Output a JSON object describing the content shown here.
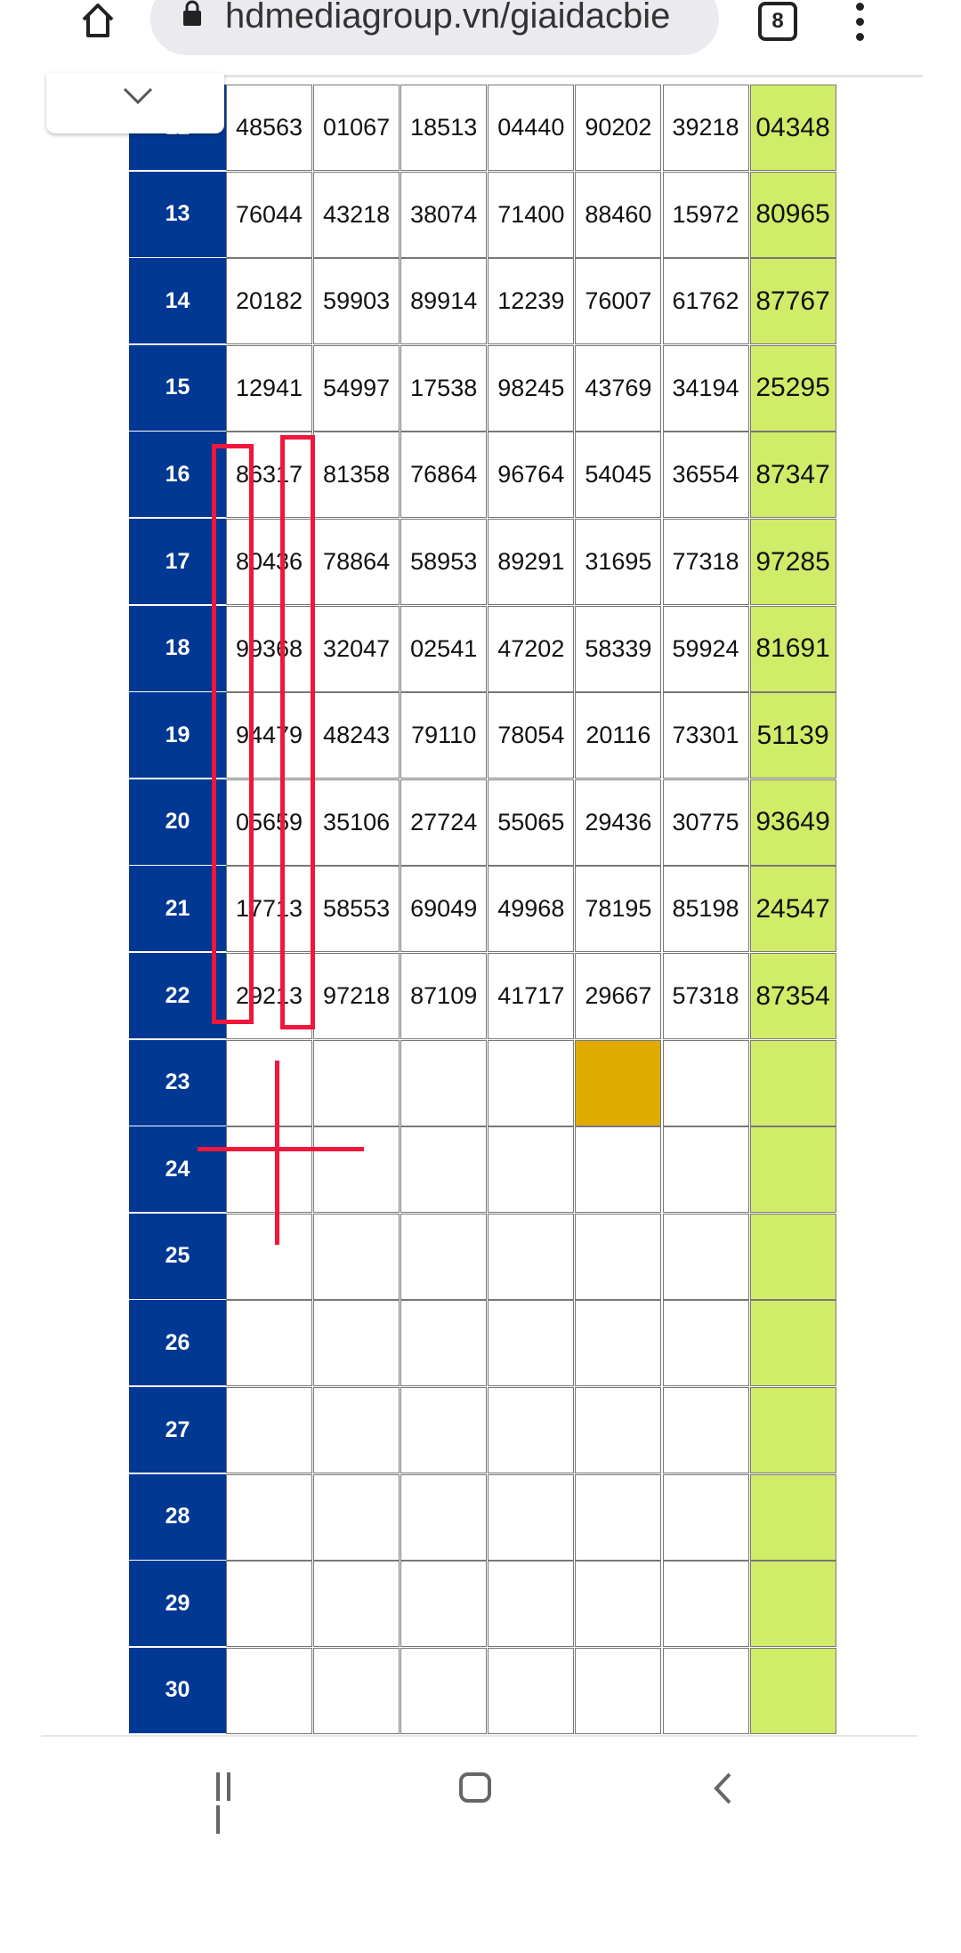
{
  "browser": {
    "url": "hdmediagroup.vn/giaidacbie",
    "tab_count": "8",
    "icons": [
      "home-icon",
      "lock-icon",
      "tab-switcher-icon",
      "more-menu-icon"
    ]
  },
  "colors": {
    "row_label_bg": "#003893",
    "last_column_bg": "#d0ec68",
    "highlight_cell": "#e0ab00",
    "annotation": "#f0163c"
  },
  "table": {
    "rows": [
      {
        "label": "12",
        "values": [
          "48563",
          "01067",
          "18513",
          "04440",
          "90202",
          "39218",
          "04348"
        ]
      },
      {
        "label": "13",
        "values": [
          "76044",
          "43218",
          "38074",
          "71400",
          "88460",
          "15972",
          "80965"
        ]
      },
      {
        "label": "14",
        "values": [
          "20182",
          "59903",
          "89914",
          "12239",
          "76007",
          "61762",
          "87767"
        ]
      },
      {
        "label": "15",
        "values": [
          "12941",
          "54997",
          "17538",
          "98245",
          "43769",
          "34194",
          "25295"
        ]
      },
      {
        "label": "16",
        "values": [
          "86317",
          "81358",
          "76864",
          "96764",
          "54045",
          "36554",
          "87347"
        ]
      },
      {
        "label": "17",
        "values": [
          "80436",
          "78864",
          "58953",
          "89291",
          "31695",
          "77318",
          "97285"
        ]
      },
      {
        "label": "18",
        "values": [
          "99368",
          "32047",
          "02541",
          "47202",
          "58339",
          "59924",
          "81691"
        ]
      },
      {
        "label": "19",
        "values": [
          "94479",
          "48243",
          "79110",
          "78054",
          "20116",
          "73301",
          "51139"
        ]
      },
      {
        "label": "20",
        "values": [
          "05659",
          "35106",
          "27724",
          "55065",
          "29436",
          "30775",
          "93649"
        ]
      },
      {
        "label": "21",
        "values": [
          "17713",
          "58553",
          "69049",
          "49968",
          "78195",
          "85198",
          "24547"
        ]
      },
      {
        "label": "22",
        "values": [
          "29213",
          "97218",
          "87109",
          "41717",
          "29667",
          "57318",
          "87354"
        ]
      },
      {
        "label": "23",
        "values": [
          "",
          "",
          "",
          "",
          "",
          "",
          ""
        ],
        "highlight_col": 4
      },
      {
        "label": "24",
        "values": [
          "",
          "",
          "",
          "",
          "",
          "",
          ""
        ]
      },
      {
        "label": "25",
        "values": [
          "",
          "",
          "",
          "",
          "",
          "",
          ""
        ]
      },
      {
        "label": "26",
        "values": [
          "",
          "",
          "",
          "",
          "",
          "",
          ""
        ]
      },
      {
        "label": "27",
        "values": [
          "",
          "",
          "",
          "",
          "",
          "",
          ""
        ]
      },
      {
        "label": "28",
        "values": [
          "",
          "",
          "",
          "",
          "",
          "",
          ""
        ]
      },
      {
        "label": "29",
        "values": [
          "",
          "",
          "",
          "",
          "",
          "",
          ""
        ]
      },
      {
        "label": "30",
        "values": [
          "",
          "",
          "",
          "",
          "",
          "",
          ""
        ]
      }
    ]
  },
  "nav": {
    "icons": [
      "recent-apps-icon",
      "home-button-icon",
      "back-icon"
    ]
  }
}
